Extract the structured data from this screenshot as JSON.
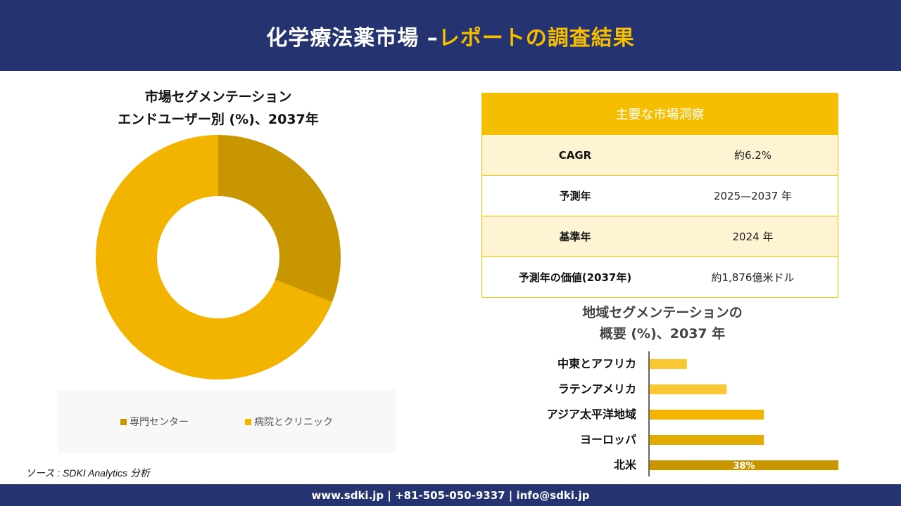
{
  "header": {
    "title_main": "化学療法薬市場 –",
    "title_accent": "レポートの調査結果"
  },
  "donut": {
    "title_line1": "市場セグメンテーション",
    "title_line2": "エンドユーザー別 (%)、2037年"
  },
  "insights": {
    "heading": "主要な市場洞察",
    "rows": [
      {
        "label": "CAGR",
        "value": "約6.2%"
      },
      {
        "label": "予測年",
        "value": "2025—2037 年"
      },
      {
        "label": "基準年",
        "value": "2024 年"
      },
      {
        "label": "予測年の価値(2037年)",
        "value": "約1,876億米ドル"
      }
    ]
  },
  "bar": {
    "title_line1": "地域セグメンテーションの",
    "title_line2": "概要 (%)、2037 年"
  },
  "source": "ソース : SDKI Analytics 分析",
  "footer": "www.sdki.jp | +81-505-050-9337 | info@sdki.jp",
  "chart_data": [
    {
      "type": "pie",
      "donut": true,
      "title": "市場セグメンテーション エンドユーザー別 (%)、2037年",
      "categories": [
        "専門センター",
        "病院とクリニック"
      ],
      "values": [
        31,
        69
      ],
      "colors": [
        "#C89600",
        "#F3B400"
      ],
      "legend": "bottom"
    },
    {
      "type": "bar",
      "orientation": "horizontal",
      "title": "地域セグメンテーションの概要 (%)、2037 年",
      "categories": [
        "中東とアフリカ",
        "ラテンアメリカ",
        "アジア太平洋地域",
        "ヨーロッパ",
        "北米"
      ],
      "values": [
        7.5,
        15.5,
        23,
        23,
        38
      ],
      "data_labels": [
        "",
        "",
        "",
        "",
        "38%"
      ],
      "colors": [
        "#F9C832",
        "#F9C832",
        "#F3B400",
        "#E3AA00",
        "#C89600"
      ],
      "xlim": [
        0,
        38
      ]
    }
  ]
}
